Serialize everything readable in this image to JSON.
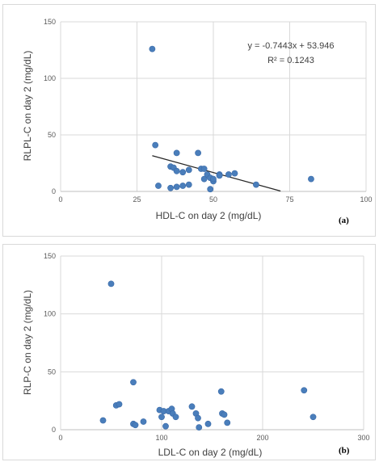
{
  "chart_data": [
    {
      "type": "scatter",
      "panel_label": "(a)",
      "xlabel": "HDL-C on day 2 (mg/dL)",
      "ylabel": "RLPL-C on day 2 (mg/dL)",
      "xlim": [
        0,
        100
      ],
      "ylim": [
        0,
        150
      ],
      "xticks": [
        0,
        25,
        50,
        75,
        100
      ],
      "yticks": [
        0,
        50,
        100,
        150
      ],
      "xtick_labels": [
        "0",
        "25",
        "50",
        "75",
        "100"
      ],
      "ytick_labels": [
        "0",
        "50",
        "100",
        "150"
      ],
      "grid": "vertical and horizontal major gridlines",
      "marker_color": "#4a7ebb",
      "trendline": {
        "slope": -0.7443,
        "intercept": 53.946,
        "x_range": [
          30,
          72
        ],
        "equation": "y = -0.7443x + 53.946",
        "r_squared": "R² = 0.1243"
      },
      "points": [
        {
          "x": 30,
          "y": 126
        },
        {
          "x": 31,
          "y": 41
        },
        {
          "x": 32,
          "y": 5
        },
        {
          "x": 36,
          "y": 22
        },
        {
          "x": 36,
          "y": 3
        },
        {
          "x": 37,
          "y": 21
        },
        {
          "x": 38,
          "y": 34
        },
        {
          "x": 38,
          "y": 18
        },
        {
          "x": 38,
          "y": 4
        },
        {
          "x": 40,
          "y": 17
        },
        {
          "x": 40,
          "y": 5
        },
        {
          "x": 42,
          "y": 19
        },
        {
          "x": 42,
          "y": 6
        },
        {
          "x": 45,
          "y": 34
        },
        {
          "x": 46,
          "y": 20
        },
        {
          "x": 47,
          "y": 20
        },
        {
          "x": 47,
          "y": 11
        },
        {
          "x": 48,
          "y": 15
        },
        {
          "x": 49,
          "y": 12
        },
        {
          "x": 49,
          "y": 2
        },
        {
          "x": 50,
          "y": 9
        },
        {
          "x": 50,
          "y": 11
        },
        {
          "x": 52,
          "y": 15
        },
        {
          "x": 52,
          "y": 14
        },
        {
          "x": 55,
          "y": 15
        },
        {
          "x": 57,
          "y": 16
        },
        {
          "x": 64,
          "y": 6
        },
        {
          "x": 82,
          "y": 11
        }
      ]
    },
    {
      "type": "scatter",
      "panel_label": "(b)",
      "xlabel": "LDL-C on day 2 (mg/dL)",
      "ylabel": "RLP-C on day 2 (mg/dL)",
      "xlim": [
        0,
        300
      ],
      "ylim": [
        0,
        150
      ],
      "xticks": [
        0,
        100,
        200,
        300
      ],
      "yticks": [
        0,
        50,
        100,
        150
      ],
      "xtick_labels": [
        "0",
        "100",
        "200",
        "300"
      ],
      "ytick_labels": [
        "0",
        "50",
        "100",
        "150"
      ],
      "grid": "vertical and horizontal major gridlines",
      "marker_color": "#4a7ebb",
      "points": [
        {
          "x": 42,
          "y": 8
        },
        {
          "x": 50,
          "y": 126
        },
        {
          "x": 55,
          "y": 21
        },
        {
          "x": 58,
          "y": 22
        },
        {
          "x": 72,
          "y": 41
        },
        {
          "x": 72,
          "y": 5
        },
        {
          "x": 74,
          "y": 4
        },
        {
          "x": 82,
          "y": 7
        },
        {
          "x": 98,
          "y": 17
        },
        {
          "x": 100,
          "y": 11
        },
        {
          "x": 102,
          "y": 16
        },
        {
          "x": 104,
          "y": 3
        },
        {
          "x": 107,
          "y": 16
        },
        {
          "x": 110,
          "y": 18
        },
        {
          "x": 111,
          "y": 14
        },
        {
          "x": 114,
          "y": 11
        },
        {
          "x": 130,
          "y": 20
        },
        {
          "x": 134,
          "y": 14
        },
        {
          "x": 136,
          "y": 10
        },
        {
          "x": 137,
          "y": 2
        },
        {
          "x": 146,
          "y": 5
        },
        {
          "x": 159,
          "y": 33
        },
        {
          "x": 160,
          "y": 14
        },
        {
          "x": 162,
          "y": 13
        },
        {
          "x": 165,
          "y": 6
        },
        {
          "x": 241,
          "y": 34
        },
        {
          "x": 250,
          "y": 11
        }
      ]
    }
  ]
}
